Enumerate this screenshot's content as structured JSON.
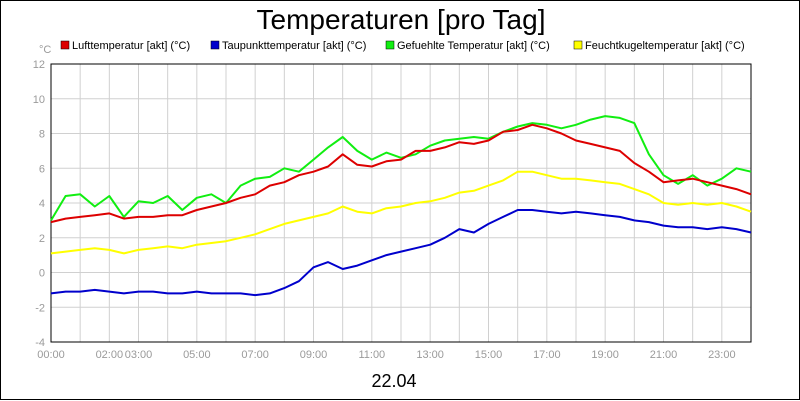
{
  "chart_data": {
    "type": "line",
    "title": "Temperaturen [pro Tag]",
    "ylabel": "°C",
    "xlabel": "22.04",
    "ylim": [
      -4,
      12
    ],
    "xlim_hours": [
      0,
      24
    ],
    "yticks": [
      -4,
      -2,
      0,
      2,
      4,
      6,
      8,
      10,
      12
    ],
    "xticks": [
      {
        "h": 0,
        "label": "00:00"
      },
      {
        "h": 2,
        "label": "02:00"
      },
      {
        "h": 3,
        "label": "03:00"
      },
      {
        "h": 5,
        "label": "05:00"
      },
      {
        "h": 7,
        "label": "07:00"
      },
      {
        "h": 9,
        "label": "09:00"
      },
      {
        "h": 11,
        "label": "11:00"
      },
      {
        "h": 13,
        "label": "13:00"
      },
      {
        "h": 15,
        "label": "15:00"
      },
      {
        "h": 17,
        "label": "17:00"
      },
      {
        "h": 19,
        "label": "19:00"
      },
      {
        "h": 21,
        "label": "21:00"
      },
      {
        "h": 23,
        "label": "23:00"
      }
    ],
    "grid": true,
    "legend_position": "top",
    "series": [
      {
        "name": "Lufttemperatur [akt] (°C)",
        "color": "#dd0000",
        "x": [
          0,
          0.5,
          1,
          1.5,
          2,
          2.5,
          3,
          3.5,
          4,
          4.5,
          5,
          5.5,
          6,
          6.5,
          7,
          7.5,
          8,
          8.5,
          9,
          9.5,
          10,
          10.5,
          11,
          11.5,
          12,
          12.5,
          13,
          13.5,
          14,
          14.5,
          15,
          15.5,
          16,
          16.5,
          17,
          17.5,
          18,
          18.5,
          19,
          19.5,
          20,
          20.5,
          21,
          21.5,
          22,
          22.5,
          23,
          23.5,
          24
        ],
        "values": [
          2.9,
          3.1,
          3.2,
          3.3,
          3.4,
          3.1,
          3.2,
          3.2,
          3.3,
          3.3,
          3.6,
          3.8,
          4.0,
          4.3,
          4.5,
          5.0,
          5.2,
          5.6,
          5.8,
          6.1,
          6.8,
          6.2,
          6.1,
          6.4,
          6.5,
          7.0,
          7.0,
          7.2,
          7.5,
          7.4,
          7.6,
          8.1,
          8.2,
          8.5,
          8.3,
          8.0,
          7.6,
          7.4,
          7.2,
          7.0,
          6.3,
          5.8,
          5.2,
          5.3,
          5.4,
          5.2,
          5.0,
          4.8,
          4.5
        ]
      },
      {
        "name": "Taupunkttemperatur [akt] (°C)",
        "color": "#0000cc",
        "x": [
          0,
          0.5,
          1,
          1.5,
          2,
          2.5,
          3,
          3.5,
          4,
          4.5,
          5,
          5.5,
          6,
          6.5,
          7,
          7.5,
          8,
          8.5,
          9,
          9.5,
          10,
          10.5,
          11,
          11.5,
          12,
          12.5,
          13,
          13.5,
          14,
          14.5,
          15,
          15.5,
          16,
          16.5,
          17,
          17.5,
          18,
          18.5,
          19,
          19.5,
          20,
          20.5,
          21,
          21.5,
          22,
          22.5,
          23,
          23.5,
          24
        ],
        "values": [
          -1.2,
          -1.1,
          -1.1,
          -1.0,
          -1.1,
          -1.2,
          -1.1,
          -1.1,
          -1.2,
          -1.2,
          -1.1,
          -1.2,
          -1.2,
          -1.2,
          -1.3,
          -1.2,
          -0.9,
          -0.5,
          0.3,
          0.6,
          0.2,
          0.4,
          0.7,
          1.0,
          1.2,
          1.4,
          1.6,
          2.0,
          2.5,
          2.3,
          2.8,
          3.2,
          3.6,
          3.6,
          3.5,
          3.4,
          3.5,
          3.4,
          3.3,
          3.2,
          3.0,
          2.9,
          2.7,
          2.6,
          2.6,
          2.5,
          2.6,
          2.5,
          2.3
        ]
      },
      {
        "name": "Gefuehlte Temperatur [akt] (°C)",
        "color": "#11ee11",
        "x": [
          0,
          0.5,
          1,
          1.5,
          2,
          2.5,
          3,
          3.5,
          4,
          4.5,
          5,
          5.5,
          6,
          6.5,
          7,
          7.5,
          8,
          8.5,
          9,
          9.5,
          10,
          10.5,
          11,
          11.5,
          12,
          12.5,
          13,
          13.5,
          14,
          14.5,
          15,
          15.5,
          16,
          16.5,
          17,
          17.5,
          18,
          18.5,
          19,
          19.5,
          20,
          20.5,
          21,
          21.5,
          22,
          22.5,
          23,
          23.5,
          24
        ],
        "values": [
          3.0,
          4.4,
          4.5,
          3.8,
          4.4,
          3.2,
          4.1,
          4.0,
          4.4,
          3.6,
          4.3,
          4.5,
          4.0,
          5.0,
          5.4,
          5.5,
          6.0,
          5.8,
          6.5,
          7.2,
          7.8,
          7.0,
          6.5,
          6.9,
          6.6,
          6.8,
          7.3,
          7.6,
          7.7,
          7.8,
          7.7,
          8.1,
          8.4,
          8.6,
          8.5,
          8.3,
          8.5,
          8.8,
          9.0,
          8.9,
          8.6,
          6.8,
          5.6,
          5.1,
          5.6,
          5.0,
          5.4,
          6.0,
          5.8
        ]
      },
      {
        "name": "Feuchtkugeltemperatur [akt] (°C)",
        "color": "#ffff00",
        "x": [
          0,
          0.5,
          1,
          1.5,
          2,
          2.5,
          3,
          3.5,
          4,
          4.5,
          5,
          5.5,
          6,
          6.5,
          7,
          7.5,
          8,
          8.5,
          9,
          9.5,
          10,
          10.5,
          11,
          11.5,
          12,
          12.5,
          13,
          13.5,
          14,
          14.5,
          15,
          15.5,
          16,
          16.5,
          17,
          17.5,
          18,
          18.5,
          19,
          19.5,
          20,
          20.5,
          21,
          21.5,
          22,
          22.5,
          23,
          23.5,
          24
        ],
        "values": [
          1.1,
          1.2,
          1.3,
          1.4,
          1.3,
          1.1,
          1.3,
          1.4,
          1.5,
          1.4,
          1.6,
          1.7,
          1.8,
          2.0,
          2.2,
          2.5,
          2.8,
          3.0,
          3.2,
          3.4,
          3.8,
          3.5,
          3.4,
          3.7,
          3.8,
          4.0,
          4.1,
          4.3,
          4.6,
          4.7,
          5.0,
          5.3,
          5.8,
          5.8,
          5.6,
          5.4,
          5.4,
          5.3,
          5.2,
          5.1,
          4.8,
          4.5,
          4.0,
          3.9,
          4.0,
          3.9,
          4.0,
          3.8,
          3.5
        ]
      }
    ]
  }
}
